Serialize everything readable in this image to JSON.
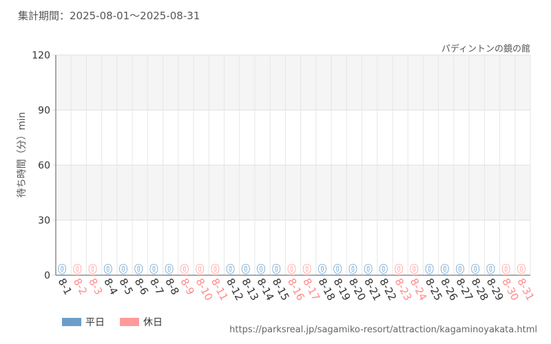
{
  "header": {
    "period": "集計期間：2025-08-01～2025-08-31",
    "attraction": "パディントンの鏡の館"
  },
  "legend": [
    {
      "label": "平日",
      "color": "#6b9dc8"
    },
    {
      "label": "休日",
      "color": "#ff9a9a"
    }
  ],
  "footer": {
    "source": "https://parksreal.jp/sagamiko-resort/attraction/kagaminoyakata.html"
  },
  "colors": {
    "weekday": "#6b9dc8",
    "holiday": "#ff9a9a",
    "weekday_text": "#333333",
    "holiday_text": "#ff8a8a"
  },
  "chart_data": {
    "type": "bar",
    "ylabel": "待ち時間（分）min",
    "ylim": [
      0,
      120
    ],
    "yticks": [
      0,
      30,
      60,
      90,
      120
    ],
    "categories": [
      "8-1",
      "8-2",
      "8-3",
      "8-4",
      "8-5",
      "8-6",
      "8-7",
      "8-8",
      "8-9",
      "8-10",
      "8-11",
      "8-12",
      "8-13",
      "8-14",
      "8-15",
      "8-16",
      "8-17",
      "8-18",
      "8-19",
      "8-20",
      "8-21",
      "8-22",
      "8-23",
      "8-24",
      "8-25",
      "8-26",
      "8-27",
      "8-28",
      "8-29",
      "8-30",
      "8-31"
    ],
    "values": [
      0,
      0,
      0,
      0,
      0,
      0,
      0,
      0,
      0,
      0,
      0,
      0,
      0,
      0,
      0,
      0,
      0,
      0,
      0,
      0,
      0,
      0,
      0,
      0,
      0,
      0,
      0,
      0,
      0,
      0,
      0
    ],
    "day_type": [
      "平日",
      "休日",
      "休日",
      "平日",
      "平日",
      "平日",
      "平日",
      "平日",
      "休日",
      "休日",
      "休日",
      "平日",
      "平日",
      "平日",
      "平日",
      "休日",
      "休日",
      "平日",
      "平日",
      "平日",
      "平日",
      "平日",
      "休日",
      "休日",
      "平日",
      "平日",
      "平日",
      "平日",
      "平日",
      "休日",
      "休日"
    ],
    "data_labels": [
      "0",
      "0",
      "0",
      "0",
      "0",
      "0",
      "0",
      "0",
      "0",
      "0",
      "0",
      "0",
      "0",
      "0",
      "0",
      "0",
      "0",
      "0",
      "0",
      "0",
      "0",
      "0",
      "0",
      "0",
      "0",
      "0",
      "0",
      "0",
      "0",
      "0",
      "0"
    ],
    "grid": true
  }
}
